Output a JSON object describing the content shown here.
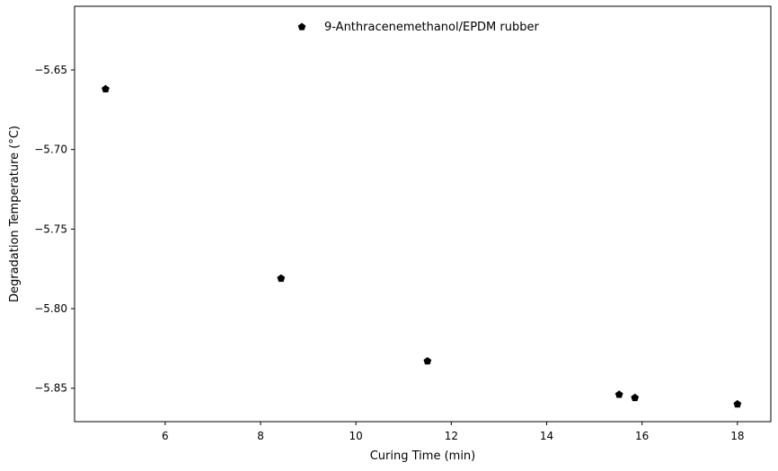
{
  "chart_data": {
    "type": "scatter",
    "title": "",
    "xlabel": "Curing Time (min)",
    "ylabel": "Degradation Temperature (°C)",
    "xlim": [
      4.1,
      18.7
    ],
    "ylim": [
      -5.871,
      -5.61
    ],
    "xticks": [
      6,
      8,
      10,
      12,
      14,
      16,
      18
    ],
    "yticks": [
      -5.65,
      -5.7,
      -5.75,
      -5.8,
      -5.85
    ],
    "xtick_labels": [
      "6",
      "8",
      "10",
      "12",
      "14",
      "16",
      "18"
    ],
    "ytick_labels": [
      "−5.65",
      "−5.70",
      "−5.75",
      "−5.80",
      "−5.85"
    ],
    "grid": false,
    "legend_position": "top-center",
    "series": [
      {
        "name": "9-Anthracenemethanol/EPDM rubber",
        "marker": "pentagon",
        "color": "#000000",
        "x": [
          4.75,
          8.43,
          11.5,
          15.52,
          15.85,
          18.0
        ],
        "y": [
          -5.662,
          -5.781,
          -5.833,
          -5.854,
          -5.856,
          -5.86
        ]
      }
    ]
  }
}
